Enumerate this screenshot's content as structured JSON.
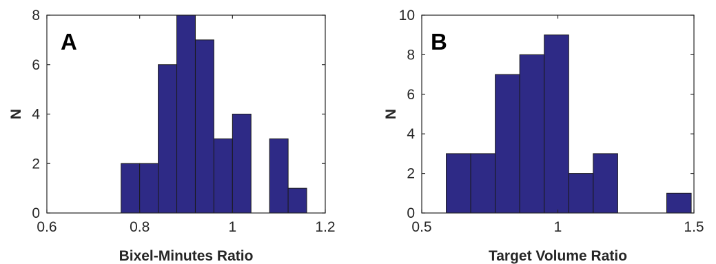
{
  "bar_color": "#2e2a86",
  "bar_edge_color": "#1a1a1a",
  "chart_data": [
    {
      "type": "bar",
      "panel_label": "A",
      "xlabel": "Bixel-Minutes Ratio",
      "ylabel": "N",
      "xlim": [
        0.6,
        1.2
      ],
      "ylim": [
        0,
        8
      ],
      "xticks": [
        "0.6",
        "0.8",
        "1",
        "1.2"
      ],
      "xtick_values": [
        0.6,
        0.8,
        1.0,
        1.2
      ],
      "yticks": [
        "0",
        "2",
        "4",
        "6",
        "8"
      ],
      "ytick_values": [
        0,
        2,
        4,
        6,
        8
      ],
      "grid": false,
      "bin_edges": [
        0.76,
        0.8,
        0.84,
        0.88,
        0.92,
        0.96,
        1.0,
        1.04,
        1.08,
        1.12,
        1.16,
        1.2
      ],
      "values": [
        2,
        2,
        6,
        8,
        7,
        3,
        4,
        0,
        3,
        1,
        0
      ]
    },
    {
      "type": "bar",
      "panel_label": "B",
      "xlabel": "Target Volume Ratio",
      "ylabel": "N",
      "xlim": [
        0.5,
        1.5
      ],
      "ylim": [
        0,
        10
      ],
      "xticks": [
        "0.5",
        "1",
        "1.5"
      ],
      "xtick_values": [
        0.5,
        1.0,
        1.5
      ],
      "yticks": [
        "0",
        "2",
        "4",
        "6",
        "8",
        "10"
      ],
      "ytick_values": [
        0,
        2,
        4,
        6,
        8,
        10
      ],
      "grid": false,
      "bin_edges": [
        0.59,
        0.68,
        0.77,
        0.86,
        0.95,
        1.04,
        1.13,
        1.22,
        1.31,
        1.4,
        1.49
      ],
      "values": [
        3,
        3,
        7,
        8,
        9,
        2,
        3,
        0,
        0,
        1
      ]
    }
  ]
}
